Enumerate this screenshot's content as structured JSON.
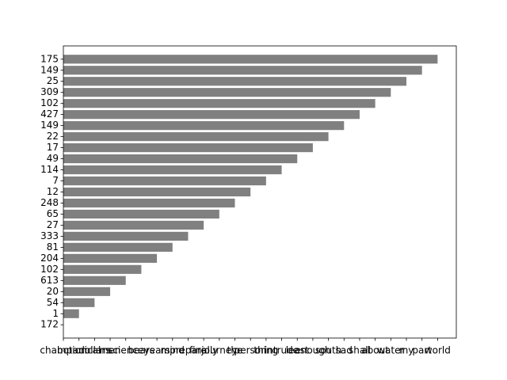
{
  "chart_data": {
    "type": "barh",
    "categories": [
      "172",
      "1",
      "54",
      "20",
      "613",
      "102",
      "204",
      "81",
      "333",
      "27",
      "65",
      "248",
      "12",
      "7",
      "114",
      "49",
      "17",
      "22",
      "149",
      "427",
      "102",
      "309",
      "25",
      "149",
      "175"
    ],
    "x_categories": [
      "champion",
      "botanical",
      "dollars",
      "men",
      "science",
      "bears",
      "years",
      "mind",
      "prepare",
      "finally",
      "journey",
      "the",
      "person",
      "thing",
      "intrude",
      "least",
      "enough",
      "south",
      "sad",
      "shall",
      "about",
      "water",
      "my",
      "part",
      "world"
    ],
    "values": [
      "champion",
      "botanical",
      "dollars",
      "men",
      "science",
      "bears",
      "years",
      "mind",
      "prepare",
      "finally",
      "journey",
      "the",
      "person",
      "thing",
      "intrude",
      "least",
      "enough",
      "south",
      "sad",
      "shall",
      "about",
      "water",
      "my",
      "part",
      "world"
    ],
    "color": "#808080"
  }
}
